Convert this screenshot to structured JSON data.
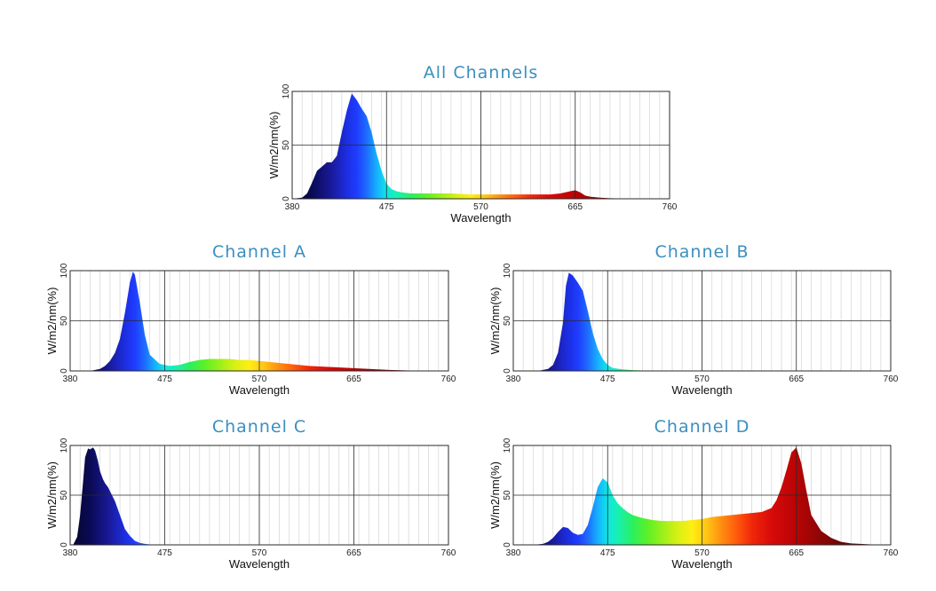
{
  "chart_data": [
    {
      "type": "area",
      "title": "All Channels",
      "xlabel": "Wavelength",
      "ylabel": "W/m2/nm(%)",
      "xlim": [
        380,
        760
      ],
      "ylim": [
        0,
        100
      ],
      "xticks": [
        "380",
        "475",
        "570",
        "665",
        "760"
      ],
      "yticks": [
        "0",
        "50",
        "100"
      ],
      "grid": true,
      "x": [
        380,
        390,
        395,
        400,
        405,
        410,
        415,
        420,
        425,
        430,
        435,
        440,
        445,
        450,
        455,
        460,
        465,
        470,
        475,
        480,
        485,
        490,
        500,
        520,
        540,
        560,
        580,
        600,
        620,
        640,
        650,
        660,
        665,
        670,
        675,
        680,
        690,
        700,
        720,
        740,
        760
      ],
      "y": [
        0,
        1,
        5,
        15,
        26,
        30,
        34,
        34,
        40,
        62,
        82,
        98,
        92,
        84,
        77,
        62,
        42,
        26,
        14,
        9,
        7,
        6,
        5,
        5,
        5,
        4,
        4,
        4,
        4,
        4,
        5,
        7,
        8,
        6,
        3,
        2,
        1,
        0.5,
        0.2,
        0,
        0
      ]
    },
    {
      "type": "area",
      "title": "Channel A",
      "xlabel": "Wavelength",
      "ylabel": "W/m2/nm(%)",
      "xlim": [
        380,
        760
      ],
      "ylim": [
        0,
        100
      ],
      "xticks": [
        "380",
        "475",
        "570",
        "665",
        "760"
      ],
      "yticks": [
        "0",
        "50",
        "100"
      ],
      "grid": true,
      "x": [
        380,
        400,
        410,
        415,
        420,
        425,
        430,
        435,
        440,
        443,
        445,
        450,
        455,
        460,
        470,
        480,
        490,
        500,
        510,
        520,
        530,
        540,
        550,
        560,
        570,
        580,
        590,
        600,
        620,
        640,
        660,
        680,
        700,
        720,
        740,
        760
      ],
      "y": [
        0,
        0,
        2,
        5,
        10,
        18,
        32,
        58,
        88,
        99,
        96,
        68,
        36,
        16,
        7,
        5,
        6,
        9,
        11,
        12,
        12,
        12,
        11,
        11,
        10,
        9,
        8,
        7,
        5,
        4,
        3,
        2,
        1,
        0.5,
        0.2,
        0
      ]
    },
    {
      "type": "area",
      "title": "Channel B",
      "xlabel": "Wavelength",
      "ylabel": "W/m2/nm(%)",
      "xlim": [
        380,
        760
      ],
      "ylim": [
        0,
        100
      ],
      "xticks": [
        "380",
        "475",
        "570",
        "665",
        "760"
      ],
      "yticks": [
        "0",
        "50",
        "100"
      ],
      "grid": true,
      "x": [
        380,
        405,
        415,
        420,
        425,
        430,
        433,
        436,
        440,
        445,
        450,
        455,
        460,
        465,
        470,
        475,
        480,
        490,
        500,
        510,
        520,
        530,
        760
      ],
      "y": [
        0,
        0,
        2,
        6,
        18,
        48,
        85,
        98,
        95,
        88,
        80,
        60,
        38,
        22,
        12,
        6,
        3,
        1.5,
        0.8,
        0.4,
        0.2,
        0,
        0
      ]
    },
    {
      "type": "area",
      "title": "Channel C",
      "xlabel": "Wavelength",
      "ylabel": "W/m2/nm(%)",
      "xlim": [
        380,
        760
      ],
      "ylim": [
        0,
        100
      ],
      "xticks": [
        "380",
        "475",
        "570",
        "665",
        "760"
      ],
      "yticks": [
        "0",
        "50",
        "100"
      ],
      "grid": true,
      "x": [
        380,
        383,
        387,
        390,
        393,
        395,
        398,
        400,
        403,
        405,
        408,
        410,
        413,
        415,
        418,
        420,
        425,
        430,
        435,
        440,
        445,
        450,
        455,
        460,
        465,
        470,
        475,
        760
      ],
      "y": [
        0,
        0,
        8,
        30,
        64,
        88,
        97,
        96,
        98,
        95,
        84,
        74,
        66,
        62,
        58,
        54,
        44,
        30,
        16,
        9,
        4,
        2,
        1,
        0.5,
        0.2,
        0,
        0,
        0
      ]
    },
    {
      "type": "area",
      "title": "Channel D",
      "xlabel": "Wavelength",
      "ylabel": "W/m2/nm(%)",
      "xlim": [
        380,
        760
      ],
      "ylim": [
        0,
        100
      ],
      "xticks": [
        "380",
        "475",
        "570",
        "665",
        "760"
      ],
      "yticks": [
        "0",
        "50",
        "100"
      ],
      "grid": true,
      "x": [
        380,
        400,
        410,
        415,
        420,
        425,
        430,
        435,
        440,
        445,
        450,
        455,
        460,
        465,
        470,
        475,
        480,
        485,
        490,
        495,
        500,
        510,
        520,
        530,
        540,
        550,
        560,
        570,
        580,
        590,
        600,
        610,
        620,
        630,
        640,
        645,
        650,
        655,
        660,
        665,
        670,
        675,
        680,
        690,
        700,
        710,
        720,
        740,
        760
      ],
      "y": [
        0,
        0,
        1,
        3,
        7,
        13,
        18,
        17,
        12,
        10,
        11,
        20,
        38,
        58,
        67,
        63,
        50,
        42,
        37,
        33,
        30,
        27,
        25,
        24,
        24,
        24,
        25,
        26,
        28,
        29,
        30,
        31,
        32,
        33,
        37,
        45,
        58,
        75,
        93,
        98,
        82,
        55,
        30,
        14,
        7,
        3,
        1.5,
        0.5,
        0
      ]
    }
  ]
}
